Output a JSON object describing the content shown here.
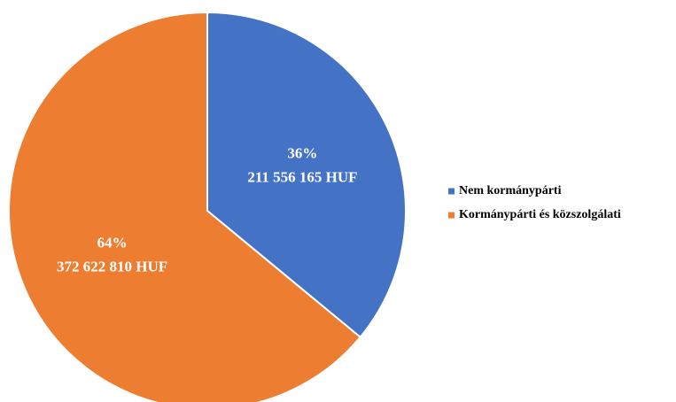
{
  "chart_data": {
    "type": "pie",
    "categories": [
      "Nem kormánypárti",
      "Kormánypárti és közszolgálati"
    ],
    "values": [
      36,
      64
    ],
    "value_labels": [
      "36%",
      "64%"
    ],
    "amount_labels": [
      "211 556 165 HUF",
      "372 622 810 HUF"
    ],
    "colors": [
      "#4472c4",
      "#ed7d31"
    ],
    "legend": "right"
  }
}
